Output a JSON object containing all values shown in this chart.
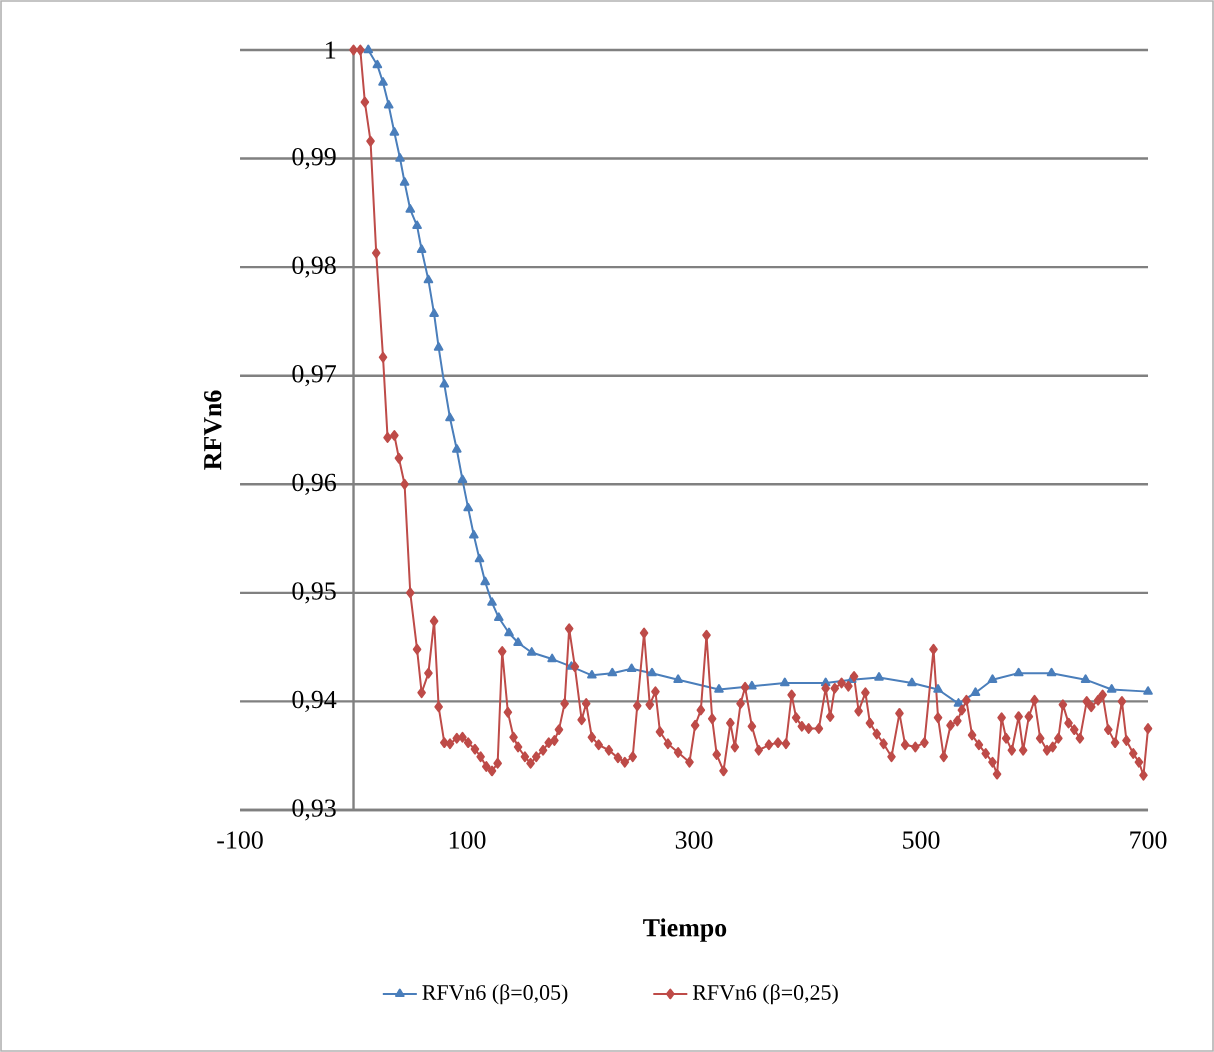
{
  "chart_data": {
    "type": "line",
    "xlabel": "Tiempo",
    "ylabel": "RFVn6",
    "xlim": [
      -100,
      700
    ],
    "ylim": [
      0.93,
      1
    ],
    "xticks": [
      -100,
      100,
      300,
      500,
      700
    ],
    "yticks": [
      {
        "value": 0.93,
        "label": "0,93"
      },
      {
        "value": 0.94,
        "label": "0,94"
      },
      {
        "value": 0.95,
        "label": "0,95"
      },
      {
        "value": 0.96,
        "label": "0,96"
      },
      {
        "value": 0.97,
        "label": "0,97"
      },
      {
        "value": 0.98,
        "label": "0,98"
      },
      {
        "value": 0.99,
        "label": "0,99"
      },
      1
    ],
    "grid": "y",
    "legend": "bottom",
    "line_style": "solid",
    "series": [
      {
        "name": "RFVn6 (β=0,05)",
        "color": "#4a7ebb",
        "marker": "triangle",
        "x": [
          13,
          21,
          26,
          31,
          36,
          41,
          45,
          50,
          56,
          60,
          66,
          71,
          75,
          80,
          85,
          91,
          96,
          101,
          106,
          111,
          116,
          122,
          128,
          137,
          145,
          157,
          175,
          192,
          210,
          228,
          245,
          263,
          286,
          322,
          351,
          380,
          416,
          439,
          463,
          492,
          515,
          533,
          548,
          563,
          586,
          615,
          645,
          668,
          700
        ],
        "values": [
          1,
          0.9986,
          0.997,
          0.9949,
          0.9924,
          0.99,
          0.9878,
          0.9853,
          0.9838,
          0.9816,
          0.9788,
          0.9757,
          0.9726,
          0.9692,
          0.9661,
          0.9632,
          0.9604,
          0.9578,
          0.9553,
          0.9531,
          0.951,
          0.9491,
          0.9477,
          0.9463,
          0.9454,
          0.9445,
          0.9439,
          0.9432,
          0.9424,
          0.9426,
          0.943,
          0.9426,
          0.942,
          0.9411,
          0.9414,
          0.9417,
          0.9417,
          0.942,
          0.9422,
          0.9417,
          0.9411,
          0.9398,
          0.9408,
          0.942,
          0.9426,
          0.9426,
          0.942,
          0.9411,
          0.9409
        ]
      },
      {
        "name": "RFVn6 (β=0,25)",
        "color": "#be4b48",
        "marker": "diamond",
        "x": [
          0,
          6,
          10,
          15,
          20,
          26,
          30,
          36,
          40,
          45,
          50,
          56,
          60,
          66,
          71,
          75,
          80,
          85,
          91,
          96,
          101,
          107,
          112,
          117,
          122,
          127,
          131,
          136,
          141,
          145,
          151,
          156,
          161,
          167,
          172,
          177,
          181,
          186,
          190,
          195,
          201,
          205,
          210,
          216,
          225,
          233,
          239,
          246,
          250,
          256,
          261,
          266,
          270,
          277,
          286,
          296,
          301,
          306,
          311,
          316,
          320,
          326,
          332,
          336,
          341,
          345,
          351,
          357,
          366,
          374,
          381,
          386,
          390,
          395,
          401,
          410,
          416,
          420,
          424,
          430,
          436,
          441,
          445,
          451,
          455,
          461,
          467,
          474,
          481,
          486,
          495,
          503,
          511,
          515,
          520,
          526,
          532,
          536,
          540,
          545,
          551,
          557,
          563,
          567,
          571,
          575,
          580,
          586,
          590,
          595,
          600,
          605,
          611,
          616,
          621,
          625,
          630,
          635,
          640,
          646,
          650,
          656,
          660,
          665,
          671,
          677,
          681,
          687,
          692,
          696,
          700
        ],
        "values": [
          1,
          1,
          0.9952,
          0.9916,
          0.9813,
          0.9717,
          0.9643,
          0.9645,
          0.9624,
          0.96,
          0.95,
          0.9448,
          0.9408,
          0.9426,
          0.9474,
          0.9395,
          0.9362,
          0.9361,
          0.9366,
          0.9367,
          0.9362,
          0.9356,
          0.9349,
          0.934,
          0.9336,
          0.9343,
          0.9446,
          0.939,
          0.9367,
          0.9358,
          0.9349,
          0.9343,
          0.9349,
          0.9355,
          0.9362,
          0.9364,
          0.9374,
          0.9398,
          0.9467,
          0.9432,
          0.9383,
          0.9398,
          0.9367,
          0.936,
          0.9355,
          0.9348,
          0.9344,
          0.9349,
          0.9396,
          0.9463,
          0.9397,
          0.9409,
          0.9372,
          0.9361,
          0.9353,
          0.9344,
          0.9378,
          0.9392,
          0.9461,
          0.9384,
          0.9351,
          0.9336,
          0.938,
          0.9358,
          0.9398,
          0.9413,
          0.9377,
          0.9355,
          0.936,
          0.9362,
          0.9361,
          0.9406,
          0.9385,
          0.9377,
          0.9375,
          0.9375,
          0.9412,
          0.9386,
          0.9412,
          0.9417,
          0.9414,
          0.9423,
          0.9391,
          0.9408,
          0.938,
          0.937,
          0.9361,
          0.9349,
          0.9389,
          0.936,
          0.9358,
          0.9362,
          0.9448,
          0.9385,
          0.9349,
          0.9378,
          0.9382,
          0.9392,
          0.9401,
          0.9369,
          0.936,
          0.9352,
          0.9344,
          0.9333,
          0.9385,
          0.9366,
          0.9355,
          0.9386,
          0.9355,
          0.9386,
          0.9401,
          0.9366,
          0.9355,
          0.9358,
          0.9366,
          0.9397,
          0.938,
          0.9374,
          0.9366,
          0.94,
          0.9395,
          0.9401,
          0.9406,
          0.9374,
          0.9362,
          0.94,
          0.9364,
          0.9352,
          0.9344,
          0.9332,
          0.9375
        ]
      }
    ]
  }
}
